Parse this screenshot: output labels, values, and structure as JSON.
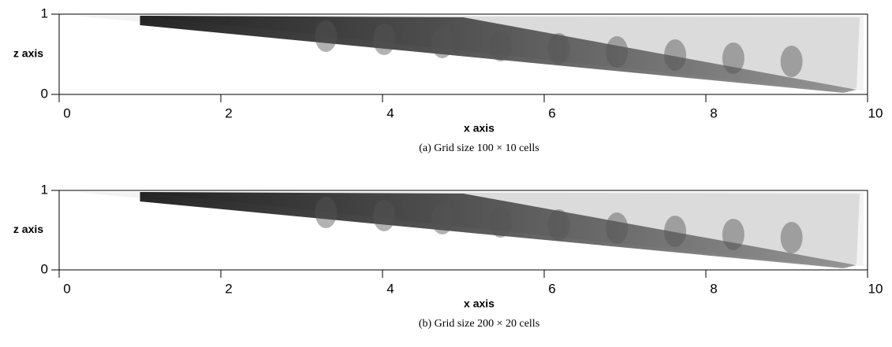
{
  "chart_data": [
    {
      "type": "image",
      "xlabel": "x axis",
      "ylabel": "z axis",
      "xlim": [
        0,
        10
      ],
      "xticks": [
        0,
        2,
        4,
        6,
        8,
        10
      ],
      "ylim": [
        0,
        1
      ],
      "yticks": [
        0,
        1
      ],
      "caption": "(a)  Grid size 100 × 10 cells"
    },
    {
      "type": "image",
      "xlabel": "x axis",
      "ylabel": "z axis",
      "xlim": [
        0,
        10
      ],
      "xticks": [
        0,
        2,
        4,
        6,
        8,
        10
      ],
      "ylim": [
        0,
        1
      ],
      "yticks": [
        0,
        1
      ],
      "caption": "(b)  Grid size 200 × 20 cells"
    }
  ]
}
